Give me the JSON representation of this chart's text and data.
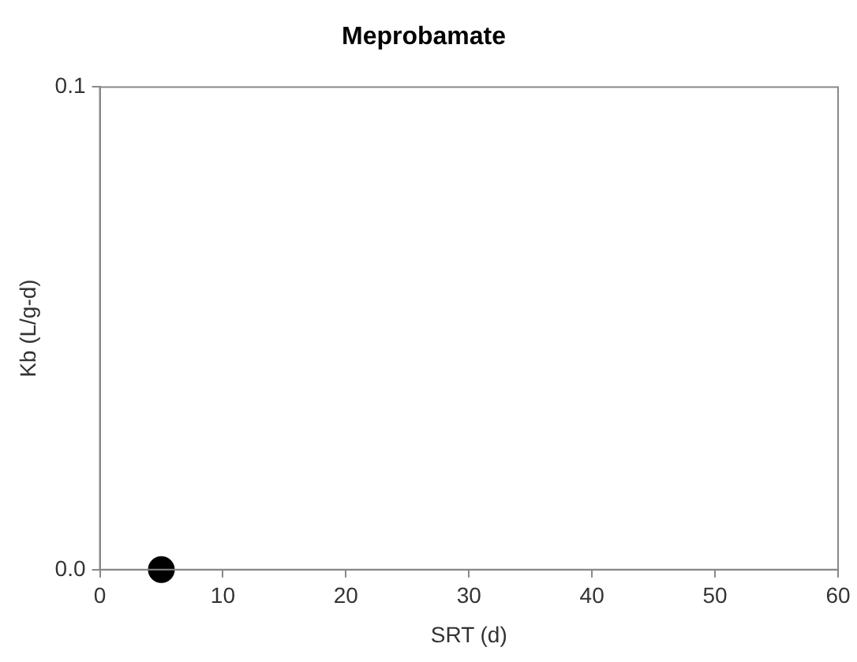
{
  "chart_data": {
    "type": "scatter",
    "title": "Meprobamate",
    "xlabel": "SRT (d)",
    "ylabel": "Kb (L/g-d)",
    "x": [
      5
    ],
    "values": [
      0
    ],
    "color": "#000000",
    "marker": "circle",
    "xlim": [
      0,
      60
    ],
    "xticks": [
      0,
      10,
      20,
      30,
      40,
      50,
      60
    ],
    "ylim": [
      0,
      0.1
    ],
    "yticks": [
      {
        "value": 0,
        "label": "0.0"
      },
      {
        "value": 0.1,
        "label": "0.1"
      }
    ],
    "grid": false,
    "legend": false
  }
}
